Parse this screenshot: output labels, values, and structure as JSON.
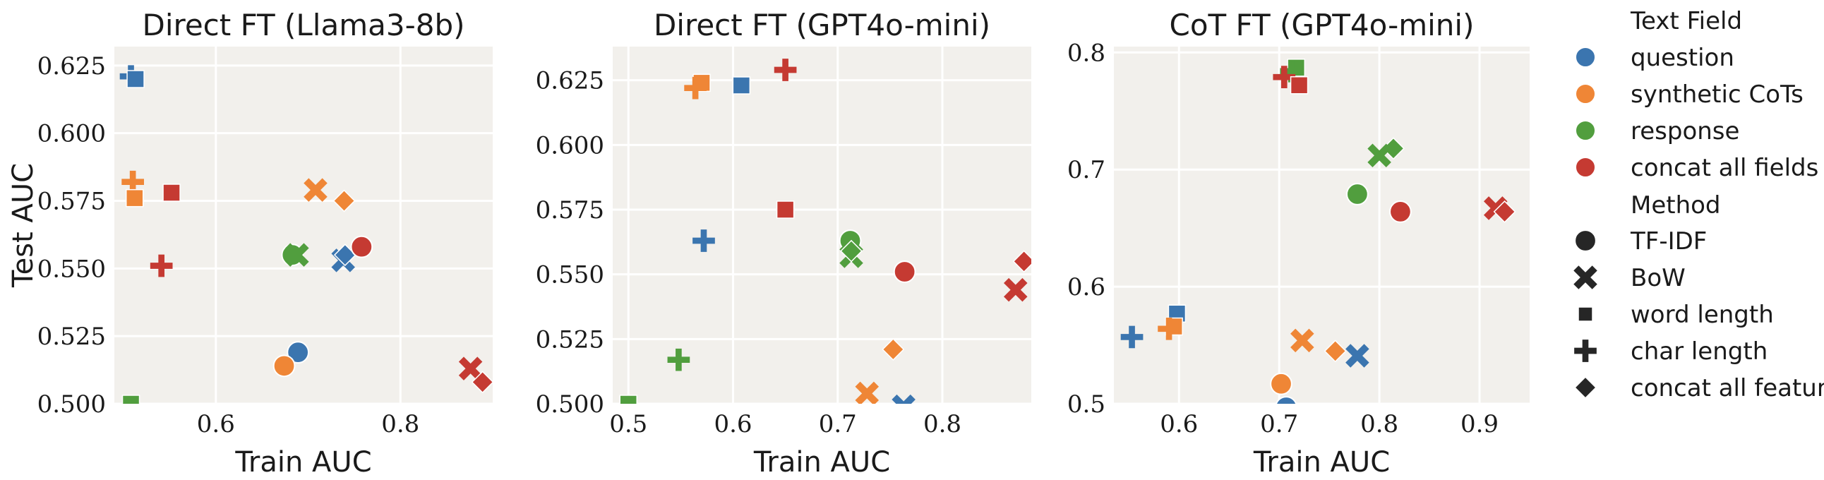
{
  "chart_data": [
    {
      "type": "scatter",
      "title": "Direct FT (Llama3-8b)",
      "xlabel": "Train AUC",
      "ylabel": "Test AUC",
      "xlim": [
        0.49,
        0.9
      ],
      "ylim": [
        0.5,
        0.632
      ],
      "xticks": [
        "0.6",
        "0.8"
      ],
      "yticks": [
        "0.500",
        "0.525",
        "0.550",
        "0.575",
        "0.600",
        "0.625"
      ],
      "grid": true,
      "points": [
        {
          "field": "question",
          "method": "char length",
          "x": 0.508,
          "y": 0.621
        },
        {
          "field": "question",
          "method": "word length",
          "x": 0.513,
          "y": 0.62
        },
        {
          "field": "synthetic CoTs",
          "method": "char length",
          "x": 0.51,
          "y": 0.582
        },
        {
          "field": "synthetic CoTs",
          "method": "word length",
          "x": 0.512,
          "y": 0.576
        },
        {
          "field": "concat all fields",
          "method": "word length",
          "x": 0.552,
          "y": 0.578
        },
        {
          "field": "synthetic CoTs",
          "method": "BoW",
          "x": 0.708,
          "y": 0.579
        },
        {
          "field": "synthetic CoTs",
          "method": "concat all features",
          "x": 0.739,
          "y": 0.575
        },
        {
          "field": "concat all fields",
          "method": "char length",
          "x": 0.541,
          "y": 0.551
        },
        {
          "field": "response",
          "method": "TF-IDF",
          "x": 0.683,
          "y": 0.555
        },
        {
          "field": "response",
          "method": "BoW",
          "x": 0.688,
          "y": 0.555
        },
        {
          "field": "question",
          "method": "BoW",
          "x": 0.738,
          "y": 0.553
        },
        {
          "field": "question",
          "method": "concat all features",
          "x": 0.74,
          "y": 0.555
        },
        {
          "field": "concat all fields",
          "method": "TF-IDF",
          "x": 0.758,
          "y": 0.558
        },
        {
          "field": "question",
          "method": "TF-IDF",
          "x": 0.689,
          "y": 0.519
        },
        {
          "field": "synthetic CoTs",
          "method": "TF-IDF",
          "x": 0.674,
          "y": 0.514
        },
        {
          "field": "response",
          "method": "word length",
          "x": 0.508,
          "y": 0.5
        },
        {
          "field": "concat all fields",
          "method": "BoW",
          "x": 0.876,
          "y": 0.513
        },
        {
          "field": "concat all fields",
          "method": "concat all features",
          "x": 0.889,
          "y": 0.508
        }
      ]
    },
    {
      "type": "scatter",
      "title": "Direct FT (GPT4o-mini)",
      "xlabel": "Train AUC",
      "ylabel": "",
      "xlim": [
        0.485,
        0.885
      ],
      "ylim": [
        0.5,
        0.638
      ],
      "xticks": [
        "0.5",
        "0.6",
        "0.7",
        "0.8"
      ],
      "yticks": [
        "0.500",
        "0.525",
        "0.550",
        "0.575",
        "0.600",
        "0.625"
      ],
      "grid": true,
      "points": [
        {
          "field": "synthetic CoTs",
          "method": "word length",
          "x": 0.57,
          "y": 0.624
        },
        {
          "field": "synthetic CoTs",
          "method": "char length",
          "x": 0.564,
          "y": 0.622
        },
        {
          "field": "question",
          "method": "word length",
          "x": 0.608,
          "y": 0.623
        },
        {
          "field": "concat all fields",
          "method": "char length",
          "x": 0.65,
          "y": 0.629
        },
        {
          "field": "concat all fields",
          "method": "word length",
          "x": 0.65,
          "y": 0.575
        },
        {
          "field": "question",
          "method": "char length",
          "x": 0.572,
          "y": 0.563
        },
        {
          "field": "response",
          "method": "TF-IDF",
          "x": 0.712,
          "y": 0.563
        },
        {
          "field": "response",
          "method": "BoW",
          "x": 0.713,
          "y": 0.557
        },
        {
          "field": "response",
          "method": "concat all features",
          "x": 0.713,
          "y": 0.559
        },
        {
          "field": "concat all fields",
          "method": "TF-IDF",
          "x": 0.764,
          "y": 0.551
        },
        {
          "field": "concat all fields",
          "method": "BoW",
          "x": 0.87,
          "y": 0.544
        },
        {
          "field": "concat all fields",
          "method": "concat all features",
          "x": 0.878,
          "y": 0.555
        },
        {
          "field": "synthetic CoTs",
          "method": "concat all features",
          "x": 0.753,
          "y": 0.521
        },
        {
          "field": "response",
          "method": "char length",
          "x": 0.548,
          "y": 0.517
        },
        {
          "field": "synthetic CoTs",
          "method": "BoW",
          "x": 0.728,
          "y": 0.504
        },
        {
          "field": "response",
          "method": "word length",
          "x": 0.5,
          "y": 0.5
        },
        {
          "field": "question",
          "method": "BoW",
          "x": 0.763,
          "y": 0.499
        }
      ]
    },
    {
      "type": "scatter",
      "title": "CoT FT (GPT4o-mini)",
      "xlabel": "Train AUC",
      "ylabel": "",
      "xlim": [
        0.535,
        0.95
      ],
      "ylim": [
        0.5,
        0.805
      ],
      "xticks": [
        "0.6",
        "0.7",
        "0.8",
        "0.9"
      ],
      "yticks": [
        "0.5",
        "0.6",
        "0.7",
        "0.8"
      ],
      "grid": true,
      "points": [
        {
          "field": "response",
          "method": "word length",
          "x": 0.717,
          "y": 0.787
        },
        {
          "field": "response",
          "method": "char length",
          "x": 0.712,
          "y": 0.784
        },
        {
          "field": "concat all fields",
          "method": "char length",
          "x": 0.705,
          "y": 0.779
        },
        {
          "field": "concat all fields",
          "method": "word length",
          "x": 0.72,
          "y": 0.772
        },
        {
          "field": "response",
          "method": "concat all features",
          "x": 0.814,
          "y": 0.718
        },
        {
          "field": "response",
          "method": "BoW",
          "x": 0.8,
          "y": 0.712
        },
        {
          "field": "response",
          "method": "TF-IDF",
          "x": 0.778,
          "y": 0.679
        },
        {
          "field": "concat all fields",
          "method": "TF-IDF",
          "x": 0.821,
          "y": 0.664
        },
        {
          "field": "concat all fields",
          "method": "BoW",
          "x": 0.916,
          "y": 0.667
        },
        {
          "field": "concat all fields",
          "method": "concat all features",
          "x": 0.925,
          "y": 0.664
        },
        {
          "field": "question",
          "method": "word length",
          "x": 0.598,
          "y": 0.577
        },
        {
          "field": "synthetic CoTs",
          "method": "word length",
          "x": 0.595,
          "y": 0.566
        },
        {
          "field": "synthetic CoTs",
          "method": "char length",
          "x": 0.59,
          "y": 0.564
        },
        {
          "field": "question",
          "method": "char length",
          "x": 0.553,
          "y": 0.557
        },
        {
          "field": "synthetic CoTs",
          "method": "BoW",
          "x": 0.723,
          "y": 0.554
        },
        {
          "field": "synthetic CoTs",
          "method": "concat all features",
          "x": 0.756,
          "y": 0.545
        },
        {
          "field": "question",
          "method": "BoW",
          "x": 0.778,
          "y": 0.541
        },
        {
          "field": "synthetic CoTs",
          "method": "TF-IDF",
          "x": 0.702,
          "y": 0.517
        },
        {
          "field": "question",
          "method": "TF-IDF",
          "x": 0.707,
          "y": 0.497
        }
      ]
    }
  ],
  "legend": {
    "field_title": "Text Field",
    "fields": [
      {
        "key": "question",
        "label": "question",
        "color": "#3b75af"
      },
      {
        "key": "synthetic CoTs",
        "label": "synthetic CoTs",
        "color": "#ef8636"
      },
      {
        "key": "response",
        "label": "response",
        "color": "#519e3e"
      },
      {
        "key": "concat all fields",
        "label": "concat all fields",
        "color": "#c53a32"
      }
    ],
    "method_title": "Method",
    "methods": [
      {
        "key": "TF-IDF",
        "label": "TF-IDF",
        "marker": "circle"
      },
      {
        "key": "BoW",
        "label": "BoW",
        "marker": "x"
      },
      {
        "key": "word length",
        "label": "word length",
        "marker": "square"
      },
      {
        "key": "char length",
        "label": "char length",
        "marker": "plus"
      },
      {
        "key": "concat all features",
        "label": "concat all features",
        "marker": "diamond"
      }
    ]
  }
}
